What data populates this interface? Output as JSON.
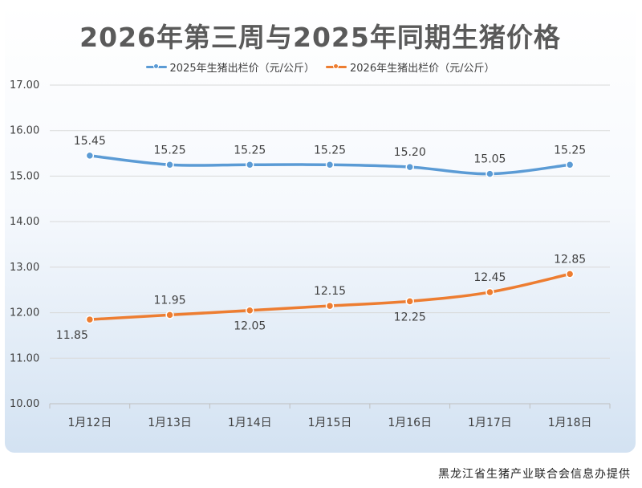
{
  "chart_data": {
    "type": "line",
    "title": "2026年第三周与2025年同期生猪价格",
    "categories": [
      "1月12日",
      "1月13日",
      "1月14日",
      "1月15日",
      "1月16日",
      "1月17日",
      "1月18日"
    ],
    "ylim": [
      10,
      17
    ],
    "yticks": [
      "10.00",
      "11.00",
      "12.00",
      "13.00",
      "14.00",
      "15.00",
      "16.00",
      "17.00"
    ],
    "series": [
      {
        "name": "2025年生猪出栏价（元/公斤）",
        "color": "#5b9bd5",
        "values": [
          15.45,
          15.25,
          15.25,
          15.25,
          15.2,
          15.05,
          15.25
        ],
        "labels": [
          "15.45",
          "15.25",
          "15.25",
          "15.25",
          "15.20",
          "15.05",
          "15.25"
        ],
        "label_pos": [
          "above",
          "above",
          "above",
          "above",
          "above",
          "above",
          "above"
        ]
      },
      {
        "name": "2026年生猪出栏价（元/公斤）",
        "color": "#ed7d31",
        "values": [
          11.85,
          11.95,
          12.05,
          12.15,
          12.25,
          12.45,
          12.85
        ],
        "labels": [
          "11.85",
          "11.95",
          "12.05",
          "12.15",
          "12.25",
          "12.45",
          "12.85"
        ],
        "label_pos": [
          "below",
          "above",
          "below",
          "above",
          "below",
          "above",
          "above"
        ]
      }
    ],
    "legend_position": "top-center",
    "grid": true
  },
  "footer": {
    "credit": "黑龙江省生猪产业联合会信息办提供"
  }
}
